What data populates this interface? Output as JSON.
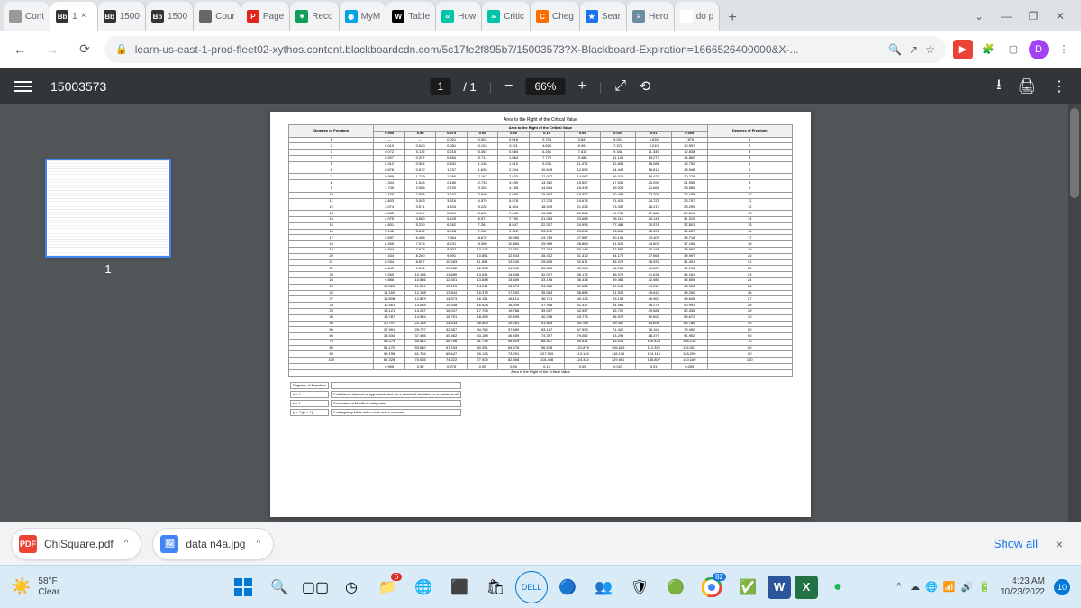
{
  "tabs": [
    {
      "icon_bg": "#999",
      "icon_text": "",
      "label": "Cont"
    },
    {
      "icon_bg": "#333",
      "icon_text": "Bb",
      "label": "1",
      "active": true,
      "closeable": true
    },
    {
      "icon_bg": "#333",
      "icon_text": "Bb",
      "label": "1500"
    },
    {
      "icon_bg": "#333",
      "icon_text": "Bb",
      "label": "1500"
    },
    {
      "icon_bg": "#666",
      "icon_text": "",
      "label": "Cour"
    },
    {
      "icon_bg": "#e2231a",
      "icon_text": "P",
      "label": "Page"
    },
    {
      "icon_bg": "#0f9d58",
      "icon_text": "✶",
      "label": "Reco"
    },
    {
      "icon_bg": "#00a4e4",
      "icon_text": "◉",
      "label": "MyM"
    },
    {
      "icon_bg": "#000",
      "icon_text": "W",
      "label": "Table"
    },
    {
      "icon_bg": "#00c4a7",
      "icon_text": "∞",
      "label": "How"
    },
    {
      "icon_bg": "#00c4a7",
      "icon_text": "∞",
      "label": "Critic"
    },
    {
      "icon_bg": "#ff6c00",
      "icon_text": "C",
      "label": "Cheg"
    },
    {
      "icon_bg": "#1a73e8",
      "icon_text": "★",
      "label": "Sear"
    },
    {
      "icon_bg": "#6b8e9f",
      "icon_text": "≡",
      "label": "Hero"
    },
    {
      "icon_bg": "#fff",
      "icon_text": "G",
      "label": "do p"
    }
  ],
  "url": "learn-us-east-1-prod-fleet02-xythos.content.blackboardcdn.com/5c17fe2f895b7/15003573?X-Blackboard-Expiration=1666526400000&X-...",
  "pdf": {
    "title": "15003573",
    "page_current": "1",
    "page_total": "/ 1",
    "zoom": "66%",
    "thumb_label": "1"
  },
  "chi_square": {
    "header_title": "Area to the Right of the Critical Value",
    "col_df_left": "Degrees of Freedom",
    "col_df_right": "Degrees of Freedom",
    "alpha_headers": [
      "0.995",
      "0.99",
      "0.975",
      "0.95",
      "0.90",
      "0.10",
      "0.05",
      "0.025",
      "0.01",
      "0.005"
    ],
    "rows": [
      [
        "1",
        "—",
        "—",
        "0.001",
        "0.004",
        "0.016",
        "2.706",
        "3.841",
        "5.024",
        "6.635",
        "7.879",
        "1"
      ],
      [
        "2",
        "0.010",
        "0.020",
        "0.051",
        "0.103",
        "0.211",
        "4.605",
        "5.991",
        "7.378",
        "9.210",
        "10.597",
        "2"
      ],
      [
        "3",
        "0.072",
        "0.115",
        "0.216",
        "0.352",
        "0.584",
        "6.251",
        "7.815",
        "9.348",
        "11.345",
        "12.838",
        "3"
      ],
      [
        "4",
        "0.207",
        "0.297",
        "0.484",
        "0.711",
        "1.064",
        "7.779",
        "9.488",
        "11.143",
        "13.277",
        "14.860",
        "4"
      ],
      [
        "5",
        "0.412",
        "0.554",
        "0.831",
        "1.145",
        "1.610",
        "9.236",
        "11.071",
        "12.833",
        "15.086",
        "16.750",
        "5"
      ],
      [
        "6",
        "0.676",
        "0.872",
        "1.237",
        "1.635",
        "2.204",
        "10.645",
        "12.592",
        "14.449",
        "16.812",
        "18.548",
        "6"
      ],
      [
        "7",
        "0.989",
        "1.239",
        "1.690",
        "2.167",
        "2.833",
        "12.017",
        "14.067",
        "16.013",
        "18.475",
        "20.278",
        "7"
      ],
      [
        "8",
        "1.344",
        "1.646",
        "2.180",
        "2.733",
        "3.490",
        "13.362",
        "15.507",
        "17.535",
        "20.090",
        "21.955",
        "8"
      ],
      [
        "9",
        "1.735",
        "2.088",
        "2.700",
        "3.325",
        "4.168",
        "14.684",
        "16.919",
        "19.023",
        "21.666",
        "23.589",
        "9"
      ],
      [
        "10",
        "2.156",
        "2.558",
        "3.247",
        "3.940",
        "4.865",
        "15.987",
        "18.307",
        "20.483",
        "23.209",
        "25.188",
        "10"
      ],
      [
        "11",
        "2.603",
        "3.053",
        "3.816",
        "4.575",
        "5.578",
        "17.275",
        "19.675",
        "21.920",
        "24.725",
        "26.757",
        "11"
      ],
      [
        "12",
        "3.074",
        "3.571",
        "4.404",
        "5.226",
        "6.304",
        "18.549",
        "21.026",
        "23.337",
        "26.217",
        "28.299",
        "12"
      ],
      [
        "13",
        "3.565",
        "4.107",
        "5.009",
        "5.892",
        "7.042",
        "19.812",
        "22.362",
        "24.736",
        "27.688",
        "29.819",
        "13"
      ],
      [
        "14",
        "4.075",
        "4.660",
        "5.629",
        "6.571",
        "7.790",
        "21.064",
        "23.685",
        "26.119",
        "29.141",
        "31.319",
        "14"
      ],
      [
        "15",
        "4.601",
        "5.229",
        "6.262",
        "7.261",
        "8.547",
        "22.307",
        "24.996",
        "27.488",
        "30.578",
        "32.801",
        "15"
      ],
      [
        "16",
        "5.142",
        "5.812",
        "6.908",
        "7.962",
        "9.312",
        "23.542",
        "26.296",
        "28.845",
        "32.000",
        "34.267",
        "16"
      ],
      [
        "17",
        "5.697",
        "6.408",
        "7.564",
        "8.672",
        "10.085",
        "24.769",
        "27.587",
        "30.191",
        "33.409",
        "35.718",
        "17"
      ],
      [
        "18",
        "6.265",
        "7.015",
        "8.231",
        "9.390",
        "10.865",
        "25.989",
        "28.869",
        "31.526",
        "34.805",
        "37.156",
        "18"
      ],
      [
        "19",
        "6.844",
        "7.633",
        "8.907",
        "10.117",
        "11.651",
        "27.204",
        "30.144",
        "32.852",
        "36.191",
        "38.582",
        "19"
      ],
      [
        "20",
        "7.434",
        "8.260",
        "9.591",
        "10.851",
        "12.443",
        "28.412",
        "31.410",
        "34.170",
        "37.566",
        "39.997",
        "20"
      ],
      [
        "21",
        "8.034",
        "8.897",
        "10.283",
        "11.591",
        "13.240",
        "29.615",
        "32.671",
        "35.479",
        "38.932",
        "41.401",
        "21"
      ],
      [
        "22",
        "8.643",
        "9.542",
        "10.982",
        "12.338",
        "14.042",
        "30.813",
        "33.924",
        "36.781",
        "40.289",
        "42.796",
        "22"
      ],
      [
        "23",
        "9.260",
        "10.196",
        "11.689",
        "13.091",
        "14.848",
        "32.007",
        "35.172",
        "38.076",
        "41.638",
        "44.181",
        "23"
      ],
      [
        "24",
        "9.886",
        "10.856",
        "12.401",
        "13.848",
        "15.659",
        "33.196",
        "36.415",
        "39.364",
        "42.980",
        "45.559",
        "24"
      ],
      [
        "25",
        "10.520",
        "11.524",
        "13.120",
        "14.611",
        "16.473",
        "34.382",
        "37.652",
        "40.646",
        "44.314",
        "46.928",
        "25"
      ],
      [
        "26",
        "11.160",
        "12.198",
        "13.844",
        "15.379",
        "17.292",
        "35.563",
        "38.885",
        "41.923",
        "45.642",
        "48.290",
        "26"
      ],
      [
        "27",
        "11.808",
        "12.879",
        "14.573",
        "16.151",
        "18.114",
        "36.741",
        "40.113",
        "43.194",
        "46.963",
        "49.645",
        "27"
      ],
      [
        "28",
        "12.461",
        "13.565",
        "15.308",
        "16.928",
        "18.939",
        "37.916",
        "41.337",
        "44.461",
        "48.278",
        "50.993",
        "28"
      ],
      [
        "29",
        "13.121",
        "14.257",
        "16.047",
        "17.708",
        "19.768",
        "39.087",
        "42.557",
        "45.722",
        "49.588",
        "52.336",
        "29"
      ],
      [
        "30",
        "13.787",
        "14.954",
        "16.791",
        "18.493",
        "20.599",
        "40.256",
        "43.773",
        "46.979",
        "50.892",
        "53.672",
        "30"
      ],
      [
        "40",
        "20.707",
        "22.164",
        "24.433",
        "26.509",
        "29.051",
        "51.805",
        "55.758",
        "59.342",
        "63.691",
        "66.766",
        "40"
      ],
      [
        "50",
        "27.991",
        "29.707",
        "32.357",
        "34.764",
        "37.689",
        "63.167",
        "67.505",
        "71.420",
        "76.154",
        "79.490",
        "50"
      ],
      [
        "60",
        "35.534",
        "37.485",
        "40.482",
        "43.188",
        "46.459",
        "74.397",
        "79.082",
        "83.298",
        "88.379",
        "91.952",
        "60"
      ],
      [
        "70",
        "43.275",
        "45.442",
        "48.758",
        "51.739",
        "55.329",
        "85.527",
        "90.531",
        "95.023",
        "100.425",
        "104.215",
        "70"
      ],
      [
        "80",
        "51.172",
        "53.540",
        "57.153",
        "60.391",
        "64.278",
        "96.578",
        "101.879",
        "106.629",
        "112.329",
        "116.321",
        "80"
      ],
      [
        "90",
        "59.196",
        "61.754",
        "65.647",
        "69.126",
        "73.291",
        "107.565",
        "113.145",
        "118.136",
        "124.116",
        "128.299",
        "90"
      ],
      [
        "100",
        "67.328",
        "70.065",
        "74.222",
        "77.929",
        "82.358",
        "118.498",
        "124.342",
        "129.561",
        "135.807",
        "140.169",
        "100"
      ]
    ],
    "footer_alpha": [
      "0.995",
      "0.99",
      "0.975",
      "0.95",
      "0.90",
      "0.10",
      "0.05",
      "0.025",
      "0.01",
      "0.005"
    ],
    "notes": [
      [
        "Degrees of Freedom",
        ""
      ],
      [
        "n − 1",
        "Confidence interval or hypothesis test for a standard deviation σ or variance σ²"
      ],
      [
        "k − 1",
        "Goodness-of-fit with k categories"
      ],
      [
        "(r − 1)(c − 1)",
        "Contingency table with r rows and c columns"
      ]
    ]
  },
  "downloads": [
    {
      "icon_bg": "#ea4335",
      "icon_text": "PDF",
      "name": "ChiSquare.pdf"
    },
    {
      "icon_bg": "#4285f4",
      "icon_text": "🖼",
      "name": "data n4a.jpg"
    }
  ],
  "show_all_label": "Show all",
  "weather": {
    "temp": "58°F",
    "cond": "Clear"
  },
  "taskbar_pinned_badge": "6",
  "taskbar_chrome_badge": "82",
  "clock": {
    "time": "4:23 AM",
    "date": "10/23/2022"
  },
  "notif_count": "10"
}
